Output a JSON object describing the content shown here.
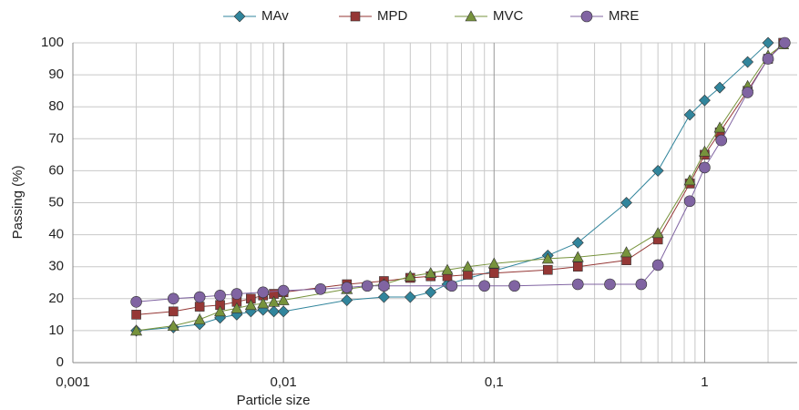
{
  "chart_data": {
    "type": "line",
    "x_label": "Particle size",
    "y_label": "Passing  (%)",
    "xscale": "log",
    "xlim": [
      0.001,
      2.75
    ],
    "ylim": [
      0,
      100
    ],
    "xticks": [
      {
        "value": 0.001,
        "label": "0,001"
      },
      {
        "value": 0.01,
        "label": "0,01"
      },
      {
        "value": 0.1,
        "label": "0,1"
      },
      1
    ],
    "xminorticks": [
      0.002,
      0.003,
      0.004,
      0.005,
      0.006,
      0.007,
      0.008,
      0.009,
      0.02,
      0.03,
      0.04,
      0.05,
      0.06,
      0.07,
      0.08,
      0.09,
      0.2,
      0.3,
      0.4,
      0.5,
      0.6,
      0.7,
      0.8,
      0.9,
      2
    ],
    "yticks": [
      0,
      10,
      20,
      30,
      40,
      50,
      60,
      70,
      80,
      90,
      100
    ],
    "grid": true,
    "legend": "top",
    "series": [
      {
        "name": "MAv",
        "color": "#31859c",
        "marker": "diamond",
        "x": [
          0.002,
          0.003,
          0.004,
          0.005,
          0.006,
          0.007,
          0.008,
          0.009,
          0.01,
          0.02,
          0.03,
          0.04,
          0.05,
          0.06,
          0.18,
          0.25,
          0.425,
          0.6,
          0.85,
          1.0,
          1.18,
          1.6,
          2.0
        ],
        "values": [
          10,
          11,
          12,
          14,
          15,
          16,
          16.5,
          16,
          16,
          19.5,
          20.5,
          20.5,
          22,
          24.5,
          33.5,
          37.5,
          50,
          60,
          77.5,
          82,
          86,
          94,
          100
        ]
      },
      {
        "name": "MPD",
        "color": "#953735",
        "marker": "square",
        "x": [
          0.002,
          0.003,
          0.004,
          0.005,
          0.006,
          0.007,
          0.008,
          0.009,
          0.01,
          0.02,
          0.03,
          0.04,
          0.05,
          0.06,
          0.075,
          0.1,
          0.18,
          0.25,
          0.425,
          0.6,
          0.85,
          1.0,
          1.18,
          1.6,
          2.0,
          2.36
        ],
        "values": [
          15,
          16,
          17.5,
          18,
          19,
          20,
          21,
          21.5,
          22,
          24.5,
          25.5,
          26.5,
          27,
          27,
          27.5,
          28,
          29,
          30,
          32,
          38.5,
          56,
          65,
          72,
          85,
          95,
          100
        ]
      },
      {
        "name": "MVC",
        "color": "#77933c",
        "marker": "triangle",
        "x": [
          0.002,
          0.003,
          0.004,
          0.005,
          0.006,
          0.007,
          0.008,
          0.009,
          0.01,
          0.02,
          0.03,
          0.04,
          0.05,
          0.06,
          0.075,
          0.1,
          0.18,
          0.25,
          0.425,
          0.6,
          0.85,
          1.0,
          1.18,
          1.6,
          2.0,
          2.36
        ],
        "values": [
          10,
          11.5,
          13.5,
          16,
          17,
          18,
          18.5,
          19,
          19.5,
          23,
          24.5,
          27,
          28,
          29,
          30,
          31,
          32.5,
          33,
          34.5,
          40.5,
          57,
          66,
          73.5,
          86.5,
          96,
          99.5
        ]
      },
      {
        "name": "MRE",
        "color": "#8064a2",
        "marker": "circle",
        "x": [
          0.002,
          0.003,
          0.004,
          0.005,
          0.006,
          0.008,
          0.01,
          0.015,
          0.02,
          0.025,
          0.03,
          0.063,
          0.09,
          0.125,
          0.25,
          0.355,
          0.5,
          0.6,
          0.85,
          1.0,
          1.2,
          1.6,
          2.0,
          2.4
        ],
        "values": [
          19,
          20,
          20.5,
          21,
          21.5,
          22,
          22.5,
          23,
          23.5,
          24,
          24,
          24,
          24,
          24,
          24.5,
          24.5,
          24.5,
          30.5,
          50.5,
          61,
          69.5,
          84.5,
          95,
          100
        ]
      }
    ]
  }
}
